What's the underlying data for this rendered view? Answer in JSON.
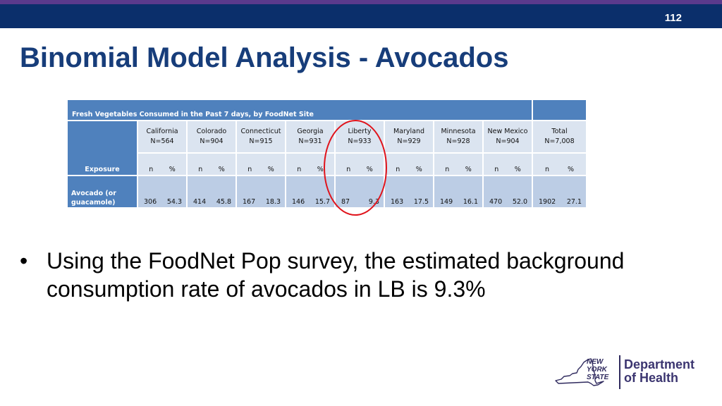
{
  "slide": {
    "page_number": "112",
    "title": "Binomial Model Analysis - Avocados"
  },
  "table": {
    "caption": "Fresh Vegetables Consumed in the Past 7 days, by FoodNet Site",
    "exposure_label": "Exposure",
    "n_label": "n",
    "pct_label": "%",
    "sites": [
      {
        "name": "California",
        "n_total": "N=564"
      },
      {
        "name": "Colorado",
        "n_total": "N=904"
      },
      {
        "name": "Connecticut",
        "n_total": "N=915"
      },
      {
        "name": "Georgia",
        "n_total": "N=931"
      },
      {
        "name": "Liberty",
        "n_total": "N=933"
      },
      {
        "name": "Maryland",
        "n_total": "N=929"
      },
      {
        "name": "Minnesota",
        "n_total": "N=928"
      },
      {
        "name": "New Mexico",
        "n_total": "N=904"
      },
      {
        "name": "Total",
        "n_total": "N=7,008"
      }
    ],
    "row": {
      "label": "Avocado (or guacamole)",
      "values": [
        {
          "n": "306",
          "pct": "54.3"
        },
        {
          "n": "414",
          "pct": "45.8"
        },
        {
          "n": "167",
          "pct": "18.3"
        },
        {
          "n": "146",
          "pct": "15.7"
        },
        {
          "n": "87",
          "pct": "9.3"
        },
        {
          "n": "163",
          "pct": "17.5"
        },
        {
          "n": "149",
          "pct": "16.1"
        },
        {
          "n": "470",
          "pct": "52.0"
        },
        {
          "n": "1902",
          "pct": "27.1"
        }
      ]
    },
    "highlight_color": "#e0131b"
  },
  "bullets": [
    "Using the FoodNet Pop survey, the estimated background consumption rate of avocados in LB is 9.3%"
  ],
  "logo": {
    "state_text": "NEW YORK STATE",
    "department_line1": "Department",
    "department_line2": "of Health"
  }
}
